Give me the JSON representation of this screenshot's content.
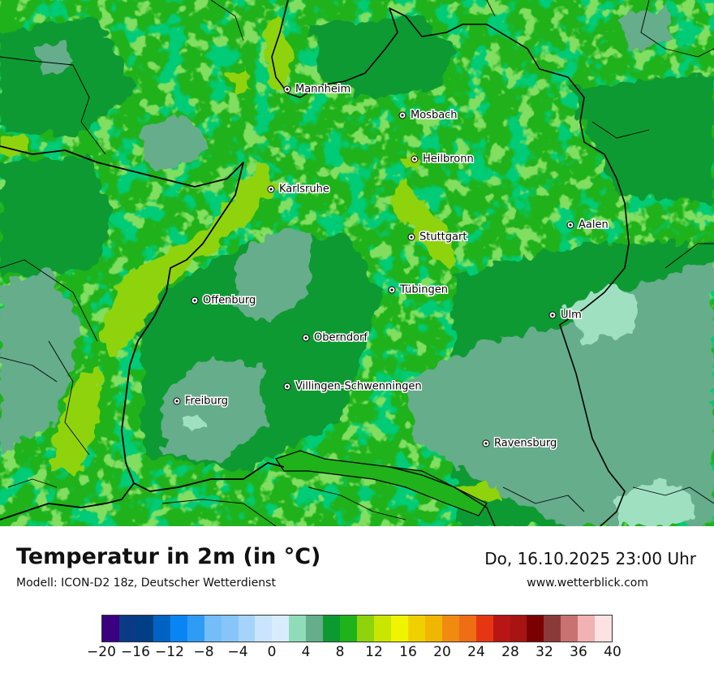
{
  "map": {
    "cities": [
      {
        "name": "Mannheim"
      },
      {
        "name": "Mosbach"
      },
      {
        "name": "Heilbronn"
      },
      {
        "name": "Karlsruhe"
      },
      {
        "name": "Aalen"
      },
      {
        "name": "Stuttgart"
      },
      {
        "name": "Tübingen"
      },
      {
        "name": "Offenburg"
      },
      {
        "name": "Ulm"
      },
      {
        "name": "Oberndorf"
      },
      {
        "name": "Villingen-Schwenningen"
      },
      {
        "name": "Freiburg"
      },
      {
        "name": "Ravensburg"
      }
    ],
    "colors": {
      "base_green": "#1fb21a",
      "dark_green": "#0c9a30",
      "mid_green": "#38ba1e",
      "light_green": "#8fd30c",
      "teal": "#66ad8b",
      "mint": "#9fe0c0",
      "border": "#000000"
    }
  },
  "footer": {
    "title": "Temperatur in 2m (in °C)",
    "subtitle": "Modell: ICON-D2 18z, Deutscher Wetterdienst",
    "datetime": "Do, 16.10.2025 23:00 Uhr",
    "site": "www.wetterblick.com"
  },
  "legend": {
    "colors": [
      "#3a007f",
      "#0a3a86",
      "#003f85",
      "#0063c4",
      "#0985f3",
      "#2e9cf5",
      "#75bdf8",
      "#87c4f8",
      "#a6d3fa",
      "#c9e4fc",
      "#d9ecfd",
      "#91dcb8",
      "#66ad8b",
      "#0c9a30",
      "#1fb21a",
      "#8fd30c",
      "#c9e600",
      "#f0f400",
      "#f1d000",
      "#f0b600",
      "#f08a10",
      "#ef6d14",
      "#e53612",
      "#b81616",
      "#a81414",
      "#7d0000",
      "#8b3a3a",
      "#c87272",
      "#f0b2b2",
      "#fde2e2"
    ],
    "ticks": [
      "−20",
      "−16",
      "−12",
      "−8",
      "−4",
      "0",
      "4",
      "8",
      "12",
      "16",
      "20",
      "24",
      "28",
      "32",
      "36",
      "40"
    ]
  }
}
